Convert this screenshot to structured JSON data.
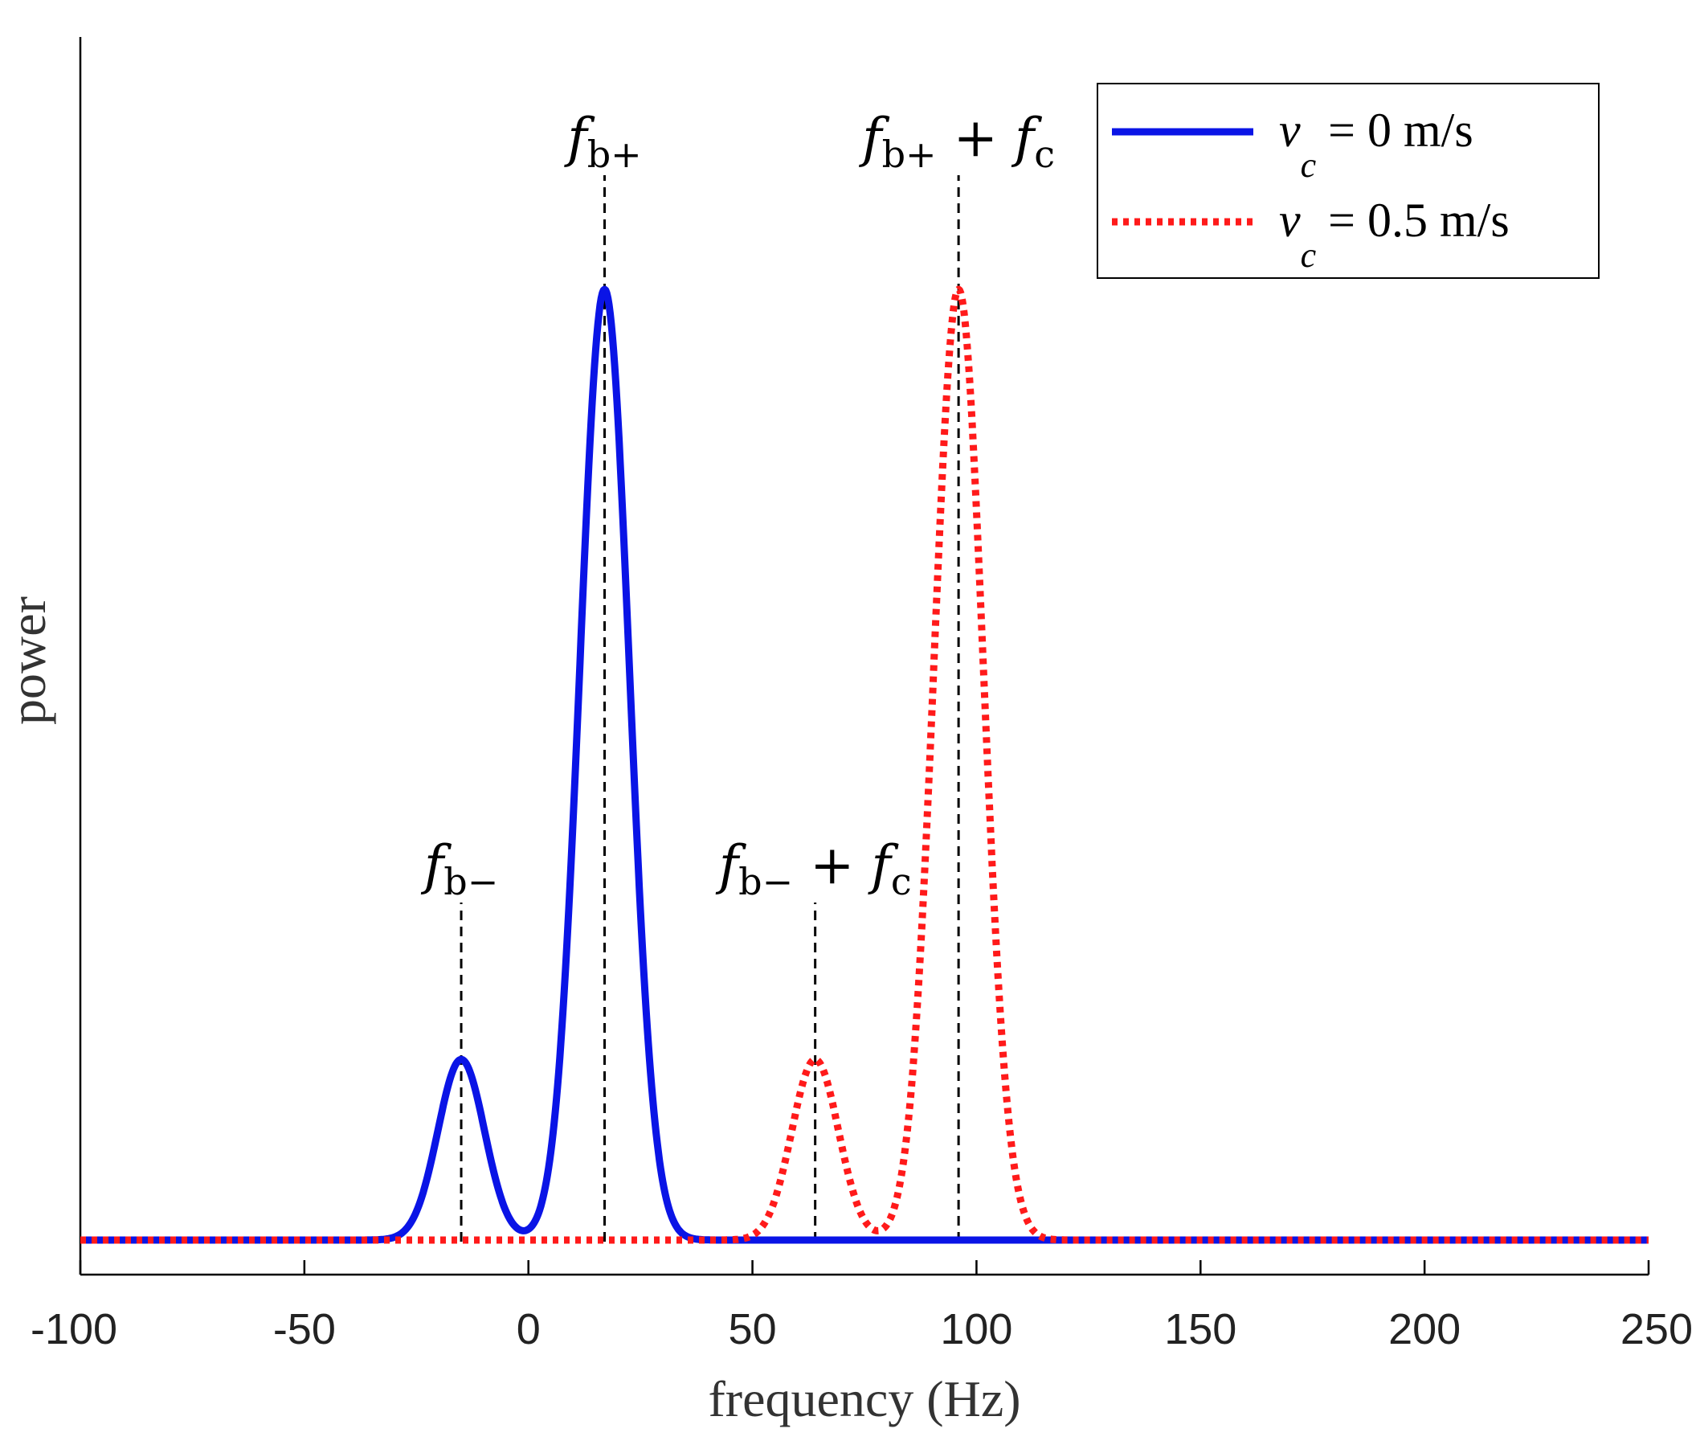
{
  "chart_data": {
    "type": "line",
    "title": "",
    "xlabel": "frequency (Hz)",
    "ylabel": "power",
    "xlim": [
      -100,
      250
    ],
    "ylim": [
      0,
      1.0
    ],
    "xticks": [
      "-100",
      "-50",
      "0",
      "50",
      "100",
      "150",
      "200",
      "250"
    ],
    "yticks_visible": false,
    "grid": false,
    "legend_position": "top-right",
    "series": [
      {
        "name": "v_c = 0 m/s",
        "legend_var": "v",
        "legend_sub": "c",
        "legend_value": "= 0 m/s",
        "color": "#0a14e6",
        "style": "solid",
        "shape": "two-gaussian",
        "peaks": [
          {
            "center": -15,
            "height": 0.19,
            "sigma": 5.2
          },
          {
            "center": 17,
            "height": 1.0,
            "sigma": 5.5
          }
        ]
      },
      {
        "name": "v_c = 0.5 m/s",
        "legend_var": "v",
        "legend_sub": "c",
        "legend_value": "= 0.5 m/s",
        "color": "#ff1a1a",
        "style": "dotted",
        "shape": "two-gaussian",
        "peaks": [
          {
            "center": 64,
            "height": 0.19,
            "sigma": 5.2
          },
          {
            "center": 96,
            "height": 1.0,
            "sigma": 5.5
          }
        ]
      }
    ],
    "annotations": [
      {
        "x": -15,
        "ymin": 0,
        "ymax": 0.355,
        "label_main": "f",
        "label_sub": "b−",
        "label_extra": ""
      },
      {
        "x": 17,
        "ymin": 0,
        "ymax": 1.12,
        "label_main": "f",
        "label_sub": "b+",
        "label_extra": ""
      },
      {
        "x": 64,
        "ymin": 0,
        "ymax": 0.355,
        "label_main": "f",
        "label_sub": "b−",
        "label_extra": "+",
        "label_main2": "f",
        "label_sub2": "c"
      },
      {
        "x": 96,
        "ymin": 0,
        "ymax": 1.12,
        "label_main": "f",
        "label_sub": "b+",
        "label_extra": "+",
        "label_main2": "f",
        "label_sub2": "c"
      }
    ]
  }
}
